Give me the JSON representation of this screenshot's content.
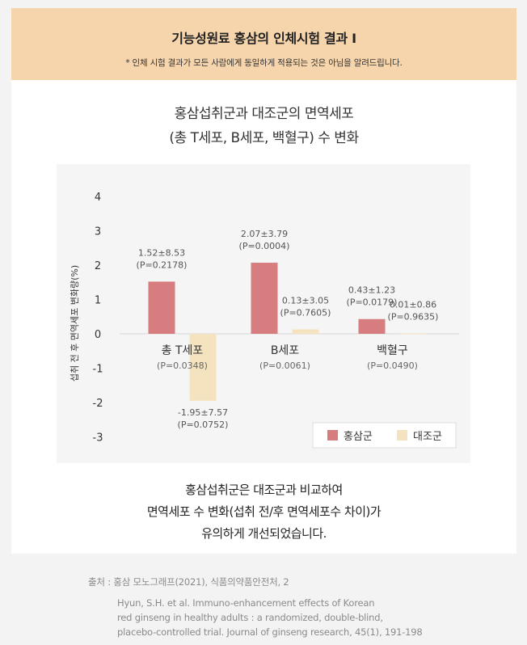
{
  "header": {
    "title": "기능성원료 홍삼의 인체시험 결과  I",
    "note": "* 인체 시험 결과가 모든 사람에게 동일하게 적용되는 것은 아님을 알려드립니다."
  },
  "chart_title": {
    "line1": "홍삼섭취군과 대조군의 면역세포",
    "line2": "(총 T세포, B세포, 백혈구) 수 변화"
  },
  "chart_data": {
    "type": "bar",
    "categories": [
      "총 T세포",
      "B세포",
      "백혈구"
    ],
    "category_p_values": [
      "(P=0.0348)",
      "(P=0.0061)",
      "(P=0.0490)"
    ],
    "ylabel": "섭취 전 후 면역세포 변화량(%)",
    "ylim": [
      -3,
      4
    ],
    "yticks": [
      "4",
      "3",
      "2",
      "1",
      "0",
      "-1",
      "-2",
      "-3"
    ],
    "legend_position": "bottom-right",
    "series": [
      {
        "name": "홍삼군",
        "color": "#d77d80",
        "values": [
          1.52,
          2.07,
          0.43
        ],
        "labels": [
          "1.52±8.53",
          "2.07±3.79",
          "0.43±1.23"
        ],
        "p_labels": [
          "(P=0.2178)",
          "(P=0.0004)",
          "(P=0.0179)"
        ]
      },
      {
        "name": "대조군",
        "color": "#f5e3c0",
        "values": [
          -1.95,
          0.13,
          0.01
        ],
        "labels": [
          "-1.95±7.57",
          "0.13±3.05",
          "0.01±0.86"
        ],
        "p_labels": [
          "(P=0.0752)",
          "(P=0.7605)",
          "(P=0.9635)"
        ]
      }
    ]
  },
  "summary": {
    "line1": "홍삼섭취군은 대조군과 비교하여",
    "line2": "면역세포 수 변화(섭취 전/후 면역세포수 차이)가",
    "line3": "유의하게 개선되었습니다."
  },
  "source": "출처 : 홍삼 모노그래프(2021), 식품의약품안전처, 2",
  "reference": {
    "line1": "Hyun, S.H. et al. Immuno-enhancement effects of Korean",
    "line2": "red ginseng in healthy adults :  a randomized, double-blind,",
    "line3": "placebo-controlled trial. Journal of ginseng research, 45(1), 191-198"
  }
}
